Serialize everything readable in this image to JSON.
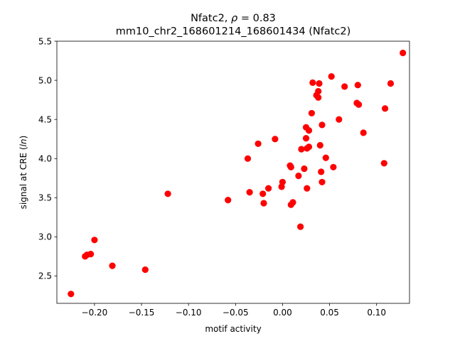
{
  "chart_data": {
    "type": "scatter",
    "title_line1_prefix": "Nfatc2, ",
    "title_rho_symbol": "ρ",
    "title_rho_value": " = 0.83",
    "title_line2": "mm10_chr2_168601214_168601434 (Nfatc2)",
    "xlabel": "motif activity",
    "ylabel_prefix": "signal at CRE (",
    "ylabel_italic": "ln",
    "ylabel_suffix": ")",
    "xlim": [
      -0.24,
      0.135
    ],
    "ylim": [
      2.15,
      5.5
    ],
    "xticks": [
      -0.2,
      -0.15,
      -0.1,
      -0.05,
      0.0,
      0.05,
      0.1
    ],
    "xtick_labels": [
      "−0.20",
      "−0.15",
      "−0.10",
      "−0.05",
      "0.00",
      "0.05",
      "0.10"
    ],
    "yticks": [
      2.5,
      3.0,
      3.5,
      4.0,
      4.5,
      5.0,
      5.5
    ],
    "ytick_labels": [
      "2.5",
      "3.0",
      "3.5",
      "4.0",
      "4.5",
      "5.0",
      "5.5"
    ],
    "marker_color": "#ff0000",
    "points": [
      {
        "x": -0.225,
        "y": 2.27
      },
      {
        "x": -0.21,
        "y": 2.75
      },
      {
        "x": -0.208,
        "y": 2.77
      },
      {
        "x": -0.204,
        "y": 2.78
      },
      {
        "x": -0.2,
        "y": 2.96
      },
      {
        "x": -0.181,
        "y": 2.63
      },
      {
        "x": -0.146,
        "y": 2.58
      },
      {
        "x": -0.122,
        "y": 3.55
      },
      {
        "x": -0.058,
        "y": 3.47
      },
      {
        "x": -0.037,
        "y": 4.0
      },
      {
        "x": -0.035,
        "y": 3.57
      },
      {
        "x": -0.026,
        "y": 4.19
      },
      {
        "x": -0.021,
        "y": 3.55
      },
      {
        "x": -0.02,
        "y": 3.43
      },
      {
        "x": -0.015,
        "y": 3.62
      },
      {
        "x": -0.008,
        "y": 4.25
      },
      {
        "x": -0.001,
        "y": 3.64
      },
      {
        "x": 0.0,
        "y": 3.7
      },
      {
        "x": 0.008,
        "y": 3.91
      },
      {
        "x": 0.009,
        "y": 3.89
      },
      {
        "x": 0.009,
        "y": 3.41
      },
      {
        "x": 0.011,
        "y": 3.44
      },
      {
        "x": 0.017,
        "y": 3.78
      },
      {
        "x": 0.019,
        "y": 3.13
      },
      {
        "x": 0.02,
        "y": 4.12
      },
      {
        "x": 0.023,
        "y": 3.87
      },
      {
        "x": 0.025,
        "y": 4.4
      },
      {
        "x": 0.025,
        "y": 4.26
      },
      {
        "x": 0.026,
        "y": 4.13
      },
      {
        "x": 0.026,
        "y": 3.62
      },
      {
        "x": 0.028,
        "y": 4.36
      },
      {
        "x": 0.028,
        "y": 4.15
      },
      {
        "x": 0.031,
        "y": 4.58
      },
      {
        "x": 0.032,
        "y": 4.97
      },
      {
        "x": 0.036,
        "y": 4.81
      },
      {
        "x": 0.038,
        "y": 4.86
      },
      {
        "x": 0.038,
        "y": 4.78
      },
      {
        "x": 0.039,
        "y": 4.96
      },
      {
        "x": 0.04,
        "y": 4.17
      },
      {
        "x": 0.041,
        "y": 3.83
      },
      {
        "x": 0.042,
        "y": 4.43
      },
      {
        "x": 0.042,
        "y": 3.7
      },
      {
        "x": 0.046,
        "y": 4.01
      },
      {
        "x": 0.052,
        "y": 5.05
      },
      {
        "x": 0.054,
        "y": 3.89
      },
      {
        "x": 0.06,
        "y": 4.5
      },
      {
        "x": 0.066,
        "y": 4.92
      },
      {
        "x": 0.079,
        "y": 4.71
      },
      {
        "x": 0.08,
        "y": 4.94
      },
      {
        "x": 0.081,
        "y": 4.69
      },
      {
        "x": 0.086,
        "y": 4.33
      },
      {
        "x": 0.108,
        "y": 3.94
      },
      {
        "x": 0.109,
        "y": 4.64
      },
      {
        "x": 0.115,
        "y": 4.96
      },
      {
        "x": 0.128,
        "y": 5.35
      }
    ]
  }
}
